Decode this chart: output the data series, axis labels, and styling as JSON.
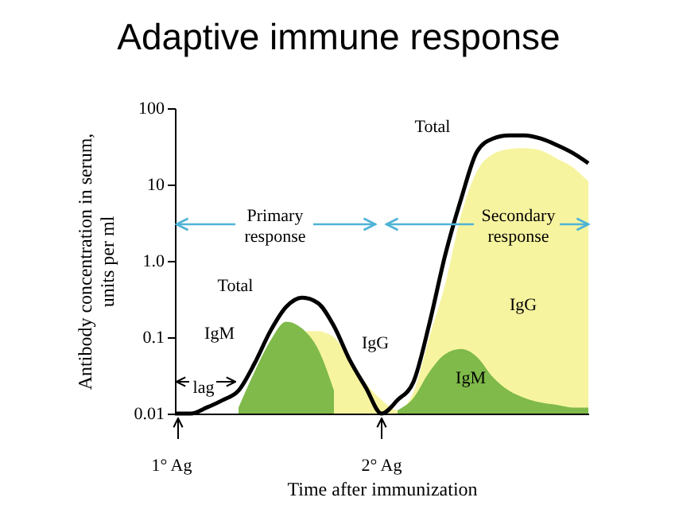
{
  "chart_data": {
    "type": "area",
    "title": "Adaptive immune response",
    "xlabel": "Time after immunization",
    "ylabel": "Antibody concentration in serum, units per ml",
    "categories": [
      null,
      null,
      null,
      null,
      null,
      null,
      null,
      null,
      null,
      null,
      null,
      null,
      null,
      null,
      null,
      null,
      null,
      null,
      null,
      null,
      null,
      null,
      null,
      null,
      null,
      null,
      null
    ],
    "series": [
      {
        "name": "IgG",
        "type": "area",
        "color": "#f7f4a0",
        "values": [
          null,
          null,
          null,
          null,
          null,
          null,
          null,
          null,
          0.12,
          0.12,
          0.1,
          0.05,
          0.025,
          0.015,
          0.011,
          0.019,
          0.1,
          0.5,
          4,
          15,
          25,
          29,
          30,
          28,
          22,
          17,
          11
        ]
      },
      {
        "name": "IgM",
        "type": "area",
        "color": "#7fba4a",
        "values": [
          null,
          null,
          null,
          null,
          0.012,
          0.035,
          0.09,
          0.16,
          0.13,
          0.07,
          0.02,
          null,
          null,
          null,
          0.011,
          0.016,
          0.035,
          0.06,
          0.07,
          0.055,
          0.03,
          0.02,
          0.016,
          0.014,
          0.013,
          0.012,
          0.012
        ]
      },
      {
        "name": "Total",
        "type": "line",
        "color": "#000000",
        "values": [
          0.01,
          0.01,
          0.012,
          0.015,
          0.02,
          0.045,
          0.12,
          0.25,
          0.33,
          0.28,
          0.14,
          0.05,
          0.022,
          0.01,
          0.015,
          0.026,
          0.15,
          1.2,
          6.5,
          27,
          40,
          44,
          44,
          40,
          33,
          26,
          19
        ]
      }
    ],
    "log": true,
    "ylim": [
      0.01,
      100
    ],
    "yticks": [
      0.01,
      0.1,
      {
        "value": 1,
        "label": "1.0"
      },
      10,
      100
    ],
    "tick_labels": "y",
    "annotations": [
      "Primary response",
      "Secondary response",
      "lag",
      "1° Ag",
      "2° Ag"
    ]
  }
}
